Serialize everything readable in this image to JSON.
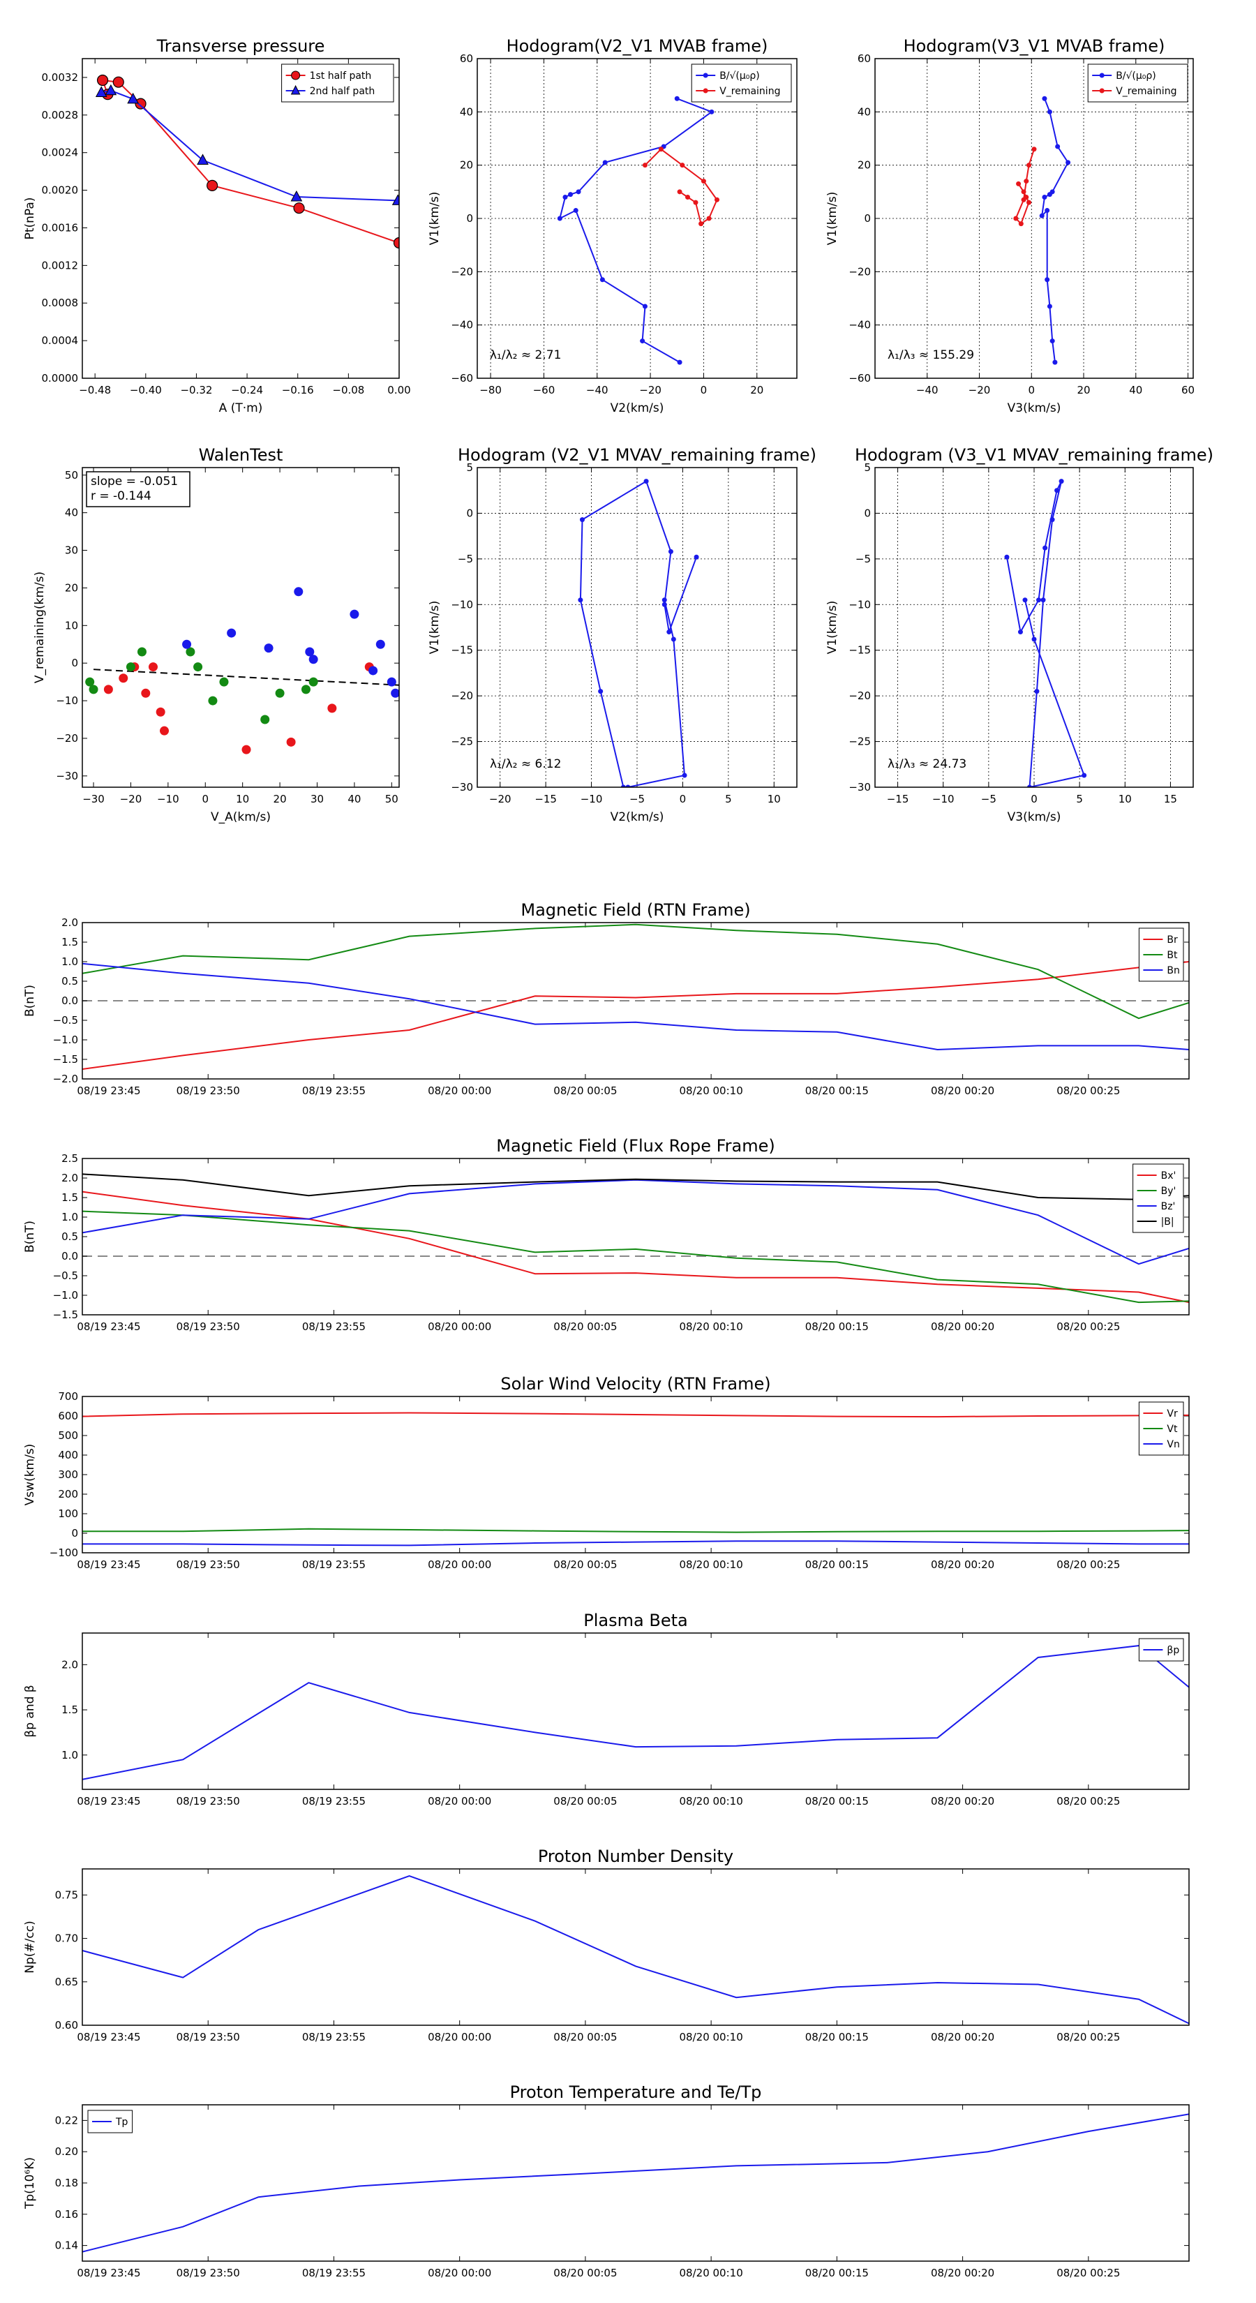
{
  "figure": {
    "time_ticks": [
      "08/19 23:45",
      "08/19 23:50",
      "08/19 23:55",
      "08/20 00:00",
      "08/20 00:05",
      "08/20 00:10",
      "08/20 00:15",
      "08/20 00:20",
      "08/20 00:25"
    ]
  },
  "colors": {
    "red": "#e8161b",
    "green": "#138a13",
    "blue": "#1a1aeb",
    "black": "#000000",
    "gray": "#888888"
  },
  "chart_data": [
    {
      "id": "p1",
      "type": "line",
      "title": "Transverse pressure",
      "xlabel": "A (T·m)",
      "ylabel": "Pt(nPa)",
      "xlim": [
        -0.5,
        0.0
      ],
      "ylim": [
        0.0,
        0.0034
      ],
      "xticks": [
        -0.48,
        -0.4,
        -0.32,
        -0.24,
        -0.16,
        -0.08,
        0.0
      ],
      "xticklabels": [
        "−0.48",
        "−0.40",
        "−0.32",
        "−0.24",
        "−0.16",
        "−0.08",
        "0.00"
      ],
      "yticks": [
        0,
        0.0004,
        0.0008,
        0.0012,
        0.0016,
        0.002,
        0.0024,
        0.0028,
        0.0032
      ],
      "yticklabels": [
        "0.0000",
        "0.0004",
        "0.0008",
        "0.0012",
        "0.0016",
        "0.0020",
        "0.0024",
        "0.0028",
        "0.0032"
      ],
      "grid": false,
      "legend": "top-right",
      "series": [
        {
          "name": "1st half path",
          "color": "red",
          "marker": "circle",
          "x": [
            0.0,
            -0.158,
            -0.295,
            -0.408,
            -0.443,
            -0.468,
            -0.46
          ],
          "y": [
            0.00144,
            0.00181,
            0.00205,
            0.00292,
            0.00315,
            0.00317,
            0.00302
          ]
        },
        {
          "name": "2nd half path",
          "color": "blue",
          "marker": "triangle",
          "x": [
            -0.002,
            -0.162,
            -0.31,
            -0.42,
            -0.455,
            -0.47
          ],
          "y": [
            0.00189,
            0.00193,
            0.00232,
            0.00297,
            0.00306,
            0.00304
          ]
        }
      ]
    },
    {
      "id": "p2",
      "type": "line",
      "title": "Hodogram(V2_V1 MVAB frame)",
      "xlabel": "V2(km/s)",
      "ylabel": "V1(km/s)",
      "xlim": [
        -85,
        35
      ],
      "ylim": [
        -60,
        60
      ],
      "xticks": [
        -80,
        -60,
        -40,
        -20,
        0,
        20
      ],
      "xticklabels": [
        "−80",
        "−60",
        "−40",
        "−20",
        "0",
        "20"
      ],
      "yticks": [
        -60,
        -40,
        -20,
        0,
        20,
        40,
        60
      ],
      "yticklabels": [
        "−60",
        "−40",
        "−20",
        "0",
        "20",
        "40",
        "60"
      ],
      "grid": true,
      "legend": "top-right",
      "annotation": "λ₁/λ₂ ≈ 2.71",
      "series": [
        {
          "name": "B/√(μ₀ρ)",
          "color": "blue",
          "marker": "dot",
          "x": [
            -10,
            3,
            -15,
            -37,
            -47,
            -50,
            -52,
            -54,
            -48,
            -38,
            -22,
            -23,
            -9
          ],
          "y": [
            45,
            40,
            27,
            21,
            10,
            9,
            8,
            0,
            3,
            -23,
            -33,
            -46,
            -54
          ]
        },
        {
          "name": "V_remaining",
          "color": "red",
          "marker": "dot",
          "x": [
            -22,
            -16,
            -8,
            0,
            5,
            2,
            -1,
            -3,
            -6,
            -9
          ],
          "y": [
            20,
            26,
            20,
            14,
            7,
            0,
            -2,
            6,
            8,
            10
          ]
        }
      ]
    },
    {
      "id": "p3",
      "type": "line",
      "title": "Hodogram(V3_V1 MVAB frame)",
      "xlabel": "V3(km/s)",
      "ylabel": "V1(km/s)",
      "xlim": [
        -60,
        62
      ],
      "ylim": [
        -60,
        60
      ],
      "xticks": [
        -40,
        -20,
        0,
        20,
        40,
        60
      ],
      "xticklabels": [
        "−40",
        "−20",
        "0",
        "20",
        "40",
        "60"
      ],
      "yticks": [
        -60,
        -40,
        -20,
        0,
        20,
        40,
        60
      ],
      "yticklabels": [
        "−60",
        "−40",
        "−20",
        "0",
        "20",
        "40",
        "60"
      ],
      "grid": true,
      "legend": "top-right",
      "annotation": "λ₁/λ₃ ≈ 155.29",
      "series": [
        {
          "name": "B/√(μ₀ρ)",
          "color": "blue",
          "marker": "dot",
          "x": [
            5,
            7,
            10,
            14,
            8,
            7,
            5,
            4,
            6,
            6,
            7,
            8,
            9
          ],
          "y": [
            45,
            40,
            27,
            21,
            10,
            9,
            8,
            1,
            3,
            -23,
            -33,
            -46,
            -54
          ]
        },
        {
          "name": "V_remaining",
          "color": "red",
          "marker": "dot",
          "x": [
            1,
            -1,
            -2,
            -3,
            -6,
            -4,
            -1,
            -2,
            -3,
            -5
          ],
          "y": [
            26,
            20,
            14,
            7,
            0,
            -2,
            6,
            8,
            10,
            13
          ]
        }
      ]
    },
    {
      "id": "p4",
      "type": "scatter",
      "title": "WalenTest",
      "xlabel": "V_A(km/s)",
      "ylabel": "V_remaining(km/s)",
      "xlim": [
        -33,
        52
      ],
      "ylim": [
        -33,
        52
      ],
      "xticks": [
        -30,
        -20,
        -10,
        0,
        10,
        20,
        30,
        40,
        50
      ],
      "xticklabels": [
        "−30",
        "−20",
        "−10",
        "0",
        "10",
        "20",
        "30",
        "40",
        "50"
      ],
      "yticks": [
        -30,
        -20,
        -10,
        0,
        10,
        20,
        30,
        40,
        50
      ],
      "yticklabels": [
        "−30",
        "−20",
        "−10",
        "0",
        "10",
        "20",
        "30",
        "40",
        "50"
      ],
      "grid": false,
      "textbox": [
        "slope = -0.051",
        "r = -0.144"
      ],
      "fit": {
        "slope": -0.051,
        "intercept": -3.2,
        "style": "dashed"
      },
      "series": [
        {
          "color": "red",
          "x": [
            -26,
            -22,
            -19,
            -16,
            -14,
            -12,
            -11,
            11,
            23,
            34,
            44
          ],
          "y": [
            -7,
            -4,
            -1,
            -8,
            -1,
            -13,
            -18,
            -23,
            -21,
            -12,
            -1
          ]
        },
        {
          "color": "green",
          "x": [
            -31,
            -30,
            -20,
            -17,
            -4,
            -2,
            2,
            5,
            16,
            20,
            27,
            29
          ],
          "y": [
            -5,
            -7,
            -1,
            3,
            3,
            -1,
            -10,
            -5,
            -15,
            -8,
            -7,
            -5
          ]
        },
        {
          "color": "blue",
          "x": [
            -5,
            7,
            17,
            25,
            28,
            29,
            40,
            45,
            47,
            50,
            51
          ],
          "y": [
            5,
            8,
            4,
            19,
            3,
            1,
            13,
            -2,
            5,
            -5,
            -8
          ]
        }
      ]
    },
    {
      "id": "p5",
      "type": "line",
      "title": "Hodogram (V2_V1 MVAV_remaining frame)",
      "xlabel": "V2(km/s)",
      "ylabel": "V1(km/s)",
      "xlim": [
        -22.5,
        12.5
      ],
      "ylim": [
        -30,
        5
      ],
      "xticks": [
        -20,
        -15,
        -10,
        -5,
        0,
        5,
        10
      ],
      "xticklabels": [
        "−20",
        "−15",
        "−10",
        "−5",
        "0",
        "5",
        "10"
      ],
      "yticks": [
        -30,
        -25,
        -20,
        -15,
        -10,
        -5,
        0,
        5
      ],
      "yticklabels": [
        "−30",
        "−25",
        "−20",
        "−15",
        "−10",
        "−5",
        "0",
        "5"
      ],
      "grid": true,
      "annotation": "λ₁/λ₂ ≈ 6.12",
      "series": [
        {
          "color": "blue",
          "marker": "dot",
          "x": [
            1.5,
            -1.5,
            -2,
            -1.3,
            -4,
            -11,
            -11.2,
            -9,
            -6.5,
            -6,
            0.2,
            -1,
            -2
          ],
          "y": [
            -4.8,
            -13,
            -10,
            -4.2,
            3.5,
            -0.7,
            -9.5,
            -19.5,
            -30,
            -30,
            -28.7,
            -13.8,
            -9.5
          ]
        }
      ]
    },
    {
      "id": "p6",
      "type": "line",
      "title": "Hodogram (V3_V1 MVAV_remaining frame)",
      "xlabel": "V3(km/s)",
      "ylabel": "V1(km/s)",
      "xlim": [
        -17.5,
        17.5
      ],
      "ylim": [
        -30,
        5
      ],
      "xticks": [
        -15,
        -10,
        -5,
        0,
        5,
        10,
        15
      ],
      "xticklabels": [
        "−15",
        "−10",
        "−5",
        "0",
        "5",
        "10",
        "15"
      ],
      "yticks": [
        -30,
        -25,
        -20,
        -15,
        -10,
        -5,
        0,
        5
      ],
      "yticklabels": [
        "−30",
        "−25",
        "−20",
        "−15",
        "−10",
        "−5",
        "0",
        "5"
      ],
      "grid": true,
      "annotation": "λ₁/λ₃ ≈ 24.73",
      "series": [
        {
          "color": "blue",
          "marker": "dot",
          "x": [
            -3,
            -1.5,
            0.5,
            1.2,
            2.5,
            3,
            2,
            1,
            0.3,
            -0.5,
            5.5,
            0,
            -1
          ],
          "y": [
            -4.8,
            -13,
            -9.5,
            -3.8,
            2.5,
            3.5,
            -0.7,
            -9.5,
            -19.5,
            -30,
            -28.7,
            -13.8,
            -9.5
          ]
        }
      ]
    },
    {
      "id": "p7",
      "type": "line",
      "title": "Magnetic Field (RTN Frame)",
      "ylabel": "B(nT)",
      "xlim": [
        -2,
        42
      ],
      "ylim": [
        -2,
        2
      ],
      "yticks": [
        -2,
        -1.5,
        -1,
        -0.5,
        0,
        0.5,
        1,
        1.5,
        2
      ],
      "yticklabels": [
        "−2.0",
        "−1.5",
        "−1.0",
        "−0.5",
        "0.0",
        "0.5",
        "1.0",
        "1.5",
        "2.0"
      ],
      "zero_line": true,
      "legend": "top-right",
      "x": [
        -2,
        2,
        7,
        11,
        16,
        20,
        24,
        28,
        32,
        36,
        40,
        42
      ],
      "series": [
        {
          "name": "Br",
          "color": "red",
          "values": [
            -1.75,
            -1.4,
            -1.0,
            -0.75,
            0.12,
            0.08,
            0.18,
            0.18,
            0.35,
            0.55,
            0.85,
            1.0
          ]
        },
        {
          "name": "Bt",
          "color": "green",
          "values": [
            0.7,
            1.15,
            1.05,
            1.65,
            1.85,
            1.95,
            1.8,
            1.7,
            1.45,
            0.8,
            -0.45,
            -0.05
          ]
        },
        {
          "name": "Bn",
          "color": "blue",
          "values": [
            0.95,
            0.7,
            0.45,
            0.05,
            -0.6,
            -0.55,
            -0.75,
            -0.8,
            -1.25,
            -1.15,
            -1.15,
            -1.25
          ]
        }
      ]
    },
    {
      "id": "p8",
      "type": "line",
      "title": "Magnetic Field (Flux Rope Frame)",
      "ylabel": "B(nT)",
      "xlim": [
        -2,
        42
      ],
      "ylim": [
        -1.5,
        2.5
      ],
      "yticks": [
        -1.5,
        -1,
        -0.5,
        0,
        0.5,
        1,
        1.5,
        2,
        2.5
      ],
      "yticklabels": [
        "−1.5",
        "−1.0",
        "−0.5",
        "0.0",
        "0.5",
        "1.0",
        "1.5",
        "2.0",
        "2.5"
      ],
      "zero_line": true,
      "legend": "top-right",
      "x": [
        -2,
        2,
        7,
        11,
        16,
        20,
        24,
        28,
        32,
        36,
        40,
        42
      ],
      "series": [
        {
          "name": "Bx'",
          "color": "red",
          "values": [
            1.65,
            1.3,
            0.95,
            0.45,
            -0.45,
            -0.43,
            -0.55,
            -0.55,
            -0.72,
            -0.82,
            -0.92,
            -1.18
          ]
        },
        {
          "name": "By'",
          "color": "green",
          "values": [
            1.15,
            1.05,
            0.8,
            0.65,
            0.1,
            0.18,
            -0.05,
            -0.15,
            -0.6,
            -0.72,
            -1.18,
            -1.15
          ]
        },
        {
          "name": "Bz'",
          "color": "blue",
          "values": [
            0.6,
            1.05,
            0.95,
            1.6,
            1.85,
            1.95,
            1.85,
            1.8,
            1.7,
            1.05,
            -0.2,
            0.2
          ]
        },
        {
          "name": "|B|",
          "color": "black",
          "values": [
            2.1,
            1.95,
            1.55,
            1.8,
            1.9,
            1.97,
            1.92,
            1.9,
            1.9,
            1.5,
            1.45,
            1.55
          ]
        }
      ]
    },
    {
      "id": "p9",
      "type": "line",
      "title": "Solar Wind Velocity (RTN Frame)",
      "ylabel": "Vsw(km/s)",
      "xlim": [
        -2,
        42
      ],
      "ylim": [
        -100,
        700
      ],
      "yticks": [
        -100,
        0,
        100,
        200,
        300,
        400,
        500,
        600,
        700
      ],
      "yticklabels": [
        "−100",
        "0",
        "100",
        "200",
        "300",
        "400",
        "500",
        "600",
        "700"
      ],
      "legend": "top-right",
      "x": [
        -2,
        2,
        7,
        11,
        16,
        20,
        24,
        28,
        32,
        36,
        40,
        42
      ],
      "series": [
        {
          "name": "Vr",
          "color": "red",
          "values": [
            598,
            610,
            614,
            616,
            612,
            607,
            602,
            598,
            596,
            600,
            602,
            604
          ]
        },
        {
          "name": "Vt",
          "color": "green",
          "values": [
            10,
            10,
            22,
            18,
            12,
            8,
            5,
            8,
            10,
            10,
            12,
            14
          ]
        },
        {
          "name": "Vn",
          "color": "blue",
          "values": [
            -55,
            -55,
            -60,
            -62,
            -50,
            -45,
            -40,
            -40,
            -45,
            -50,
            -55,
            -55
          ]
        }
      ]
    },
    {
      "id": "p10",
      "type": "line",
      "title": "Plasma Beta",
      "ylabel": "βp and β",
      "xlim": [
        -2,
        42
      ],
      "ylim": [
        0.62,
        2.35
      ],
      "yticks": [
        1.0,
        1.5,
        2.0
      ],
      "yticklabels": [
        "1.0",
        "1.5",
        "2.0"
      ],
      "legend": "top-right",
      "x": [
        -2,
        2,
        7,
        11,
        16,
        20,
        24,
        28,
        32,
        36,
        40,
        42
      ],
      "series": [
        {
          "name": "βp",
          "color": "blue",
          "values": [
            0.73,
            0.95,
            1.8,
            1.47,
            1.25,
            1.09,
            1.1,
            1.17,
            1.19,
            2.08,
            2.21,
            1.75
          ]
        }
      ]
    },
    {
      "id": "p11",
      "type": "line",
      "title": "Proton Number Density",
      "ylabel": "Np(#/cc)",
      "xlim": [
        -2,
        42
      ],
      "ylim": [
        0.6,
        0.78
      ],
      "yticks": [
        0.6,
        0.65,
        0.7,
        0.75
      ],
      "yticklabels": [
        "0.60",
        "0.65",
        "0.70",
        "0.75"
      ],
      "x": [
        -2,
        2,
        5,
        11,
        16,
        20,
        24,
        28,
        32,
        36,
        40,
        42
      ],
      "series": [
        {
          "color": "blue",
          "values": [
            0.686,
            0.655,
            0.71,
            0.772,
            0.72,
            0.668,
            0.632,
            0.644,
            0.649,
            0.647,
            0.63,
            0.602
          ]
        }
      ]
    },
    {
      "id": "p12",
      "type": "line",
      "title": "Proton Temperature and Te/Tp",
      "ylabel": "Tp(10⁶K)",
      "xlim": [
        -2,
        42
      ],
      "ylim": [
        0.13,
        0.23
      ],
      "yticks": [
        0.14,
        0.16,
        0.18,
        0.2,
        0.22
      ],
      "yticklabels": [
        "0.14",
        "0.16",
        "0.18",
        "0.20",
        "0.22"
      ],
      "legend": "top-left",
      "x": [
        -2,
        2,
        5,
        9,
        13,
        18,
        24,
        30,
        34,
        38,
        42
      ],
      "series": [
        {
          "name": "Tp",
          "color": "blue",
          "values": [
            0.136,
            0.152,
            0.171,
            0.178,
            0.182,
            0.186,
            0.191,
            0.193,
            0.2,
            0.213,
            0.224
          ]
        }
      ]
    }
  ]
}
